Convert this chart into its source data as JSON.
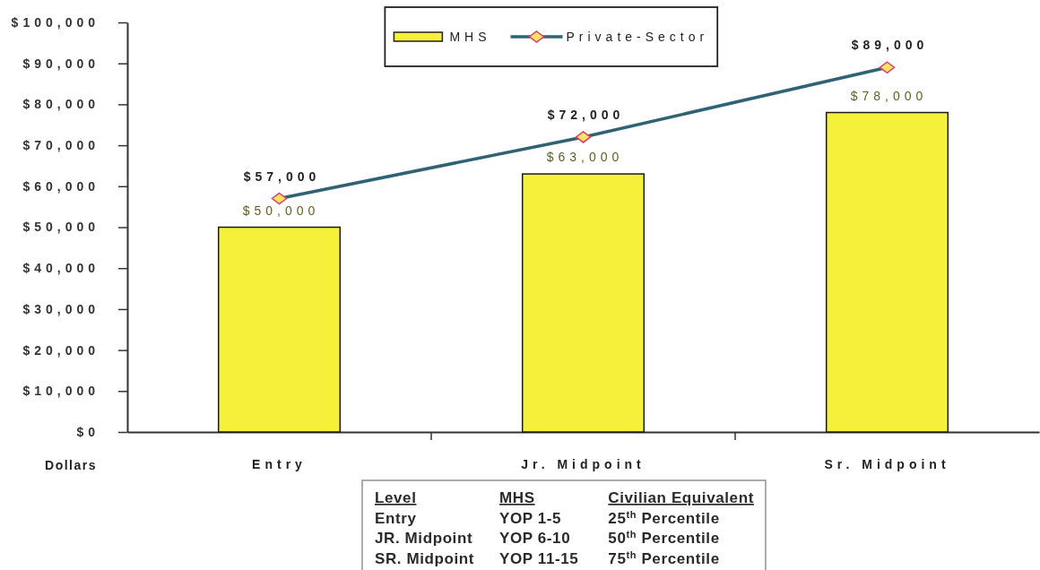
{
  "chart_data": {
    "type": "bar",
    "categories": [
      "Entry",
      "Jr. Midpoint",
      "Sr. Midpoint"
    ],
    "series": [
      {
        "name": "MHS",
        "color": "#f5f03a",
        "values": [
          50000,
          63000,
          78000
        ],
        "value_labels": [
          "$50,000",
          "$63,000",
          "$78,000"
        ]
      },
      {
        "name": "Private-Sector",
        "type": "line",
        "color": "#2f6374",
        "marker": "diamond",
        "values": [
          57000,
          72000,
          89000
        ],
        "value_labels": [
          "$57,000",
          "$72,000",
          "$89,000"
        ]
      }
    ],
    "ylabel": "Dollars",
    "ylim": [
      0,
      100000
    ],
    "yticks": [
      {
        "value": 0,
        "label": "$0"
      },
      {
        "value": 10000,
        "label": "$10,000"
      },
      {
        "value": 20000,
        "label": "$20,000"
      },
      {
        "value": 30000,
        "label": "$30,000"
      },
      {
        "value": 40000,
        "label": "$40,000"
      },
      {
        "value": 50000,
        "label": "$50,000"
      },
      {
        "value": 60000,
        "label": "$60,000"
      },
      {
        "value": 70000,
        "label": "$70,000"
      },
      {
        "value": 80000,
        "label": "$80,000"
      },
      {
        "value": 90000,
        "label": "$90,000"
      },
      {
        "value": 100000,
        "label": "$100,000"
      }
    ],
    "legend": "top",
    "annotations": [
      "Level",
      "MHS",
      "Civilian Equivalent",
      "Entry",
      "YOP 1-5",
      "25$^{th}$ Percentile",
      "JR. Midpoint",
      "YOP 6-10",
      "50$^{th}$ Percentile",
      "SR. Midpoint",
      "YOP 11-15",
      "75$^{th}$ Percentile"
    ]
  }
}
